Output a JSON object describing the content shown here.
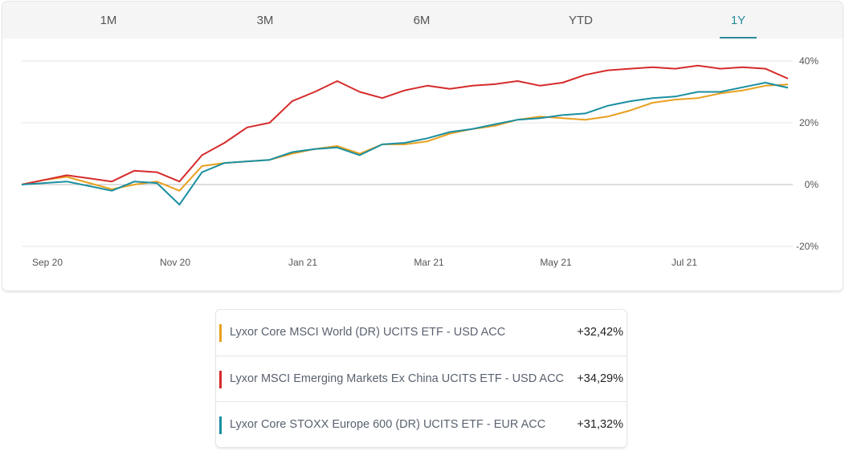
{
  "tabs": [
    {
      "label": "1M",
      "active": false
    },
    {
      "label": "3M",
      "active": false
    },
    {
      "label": "6M",
      "active": false
    },
    {
      "label": "YTD",
      "active": false
    },
    {
      "label": "1Y",
      "active": true
    }
  ],
  "colors": {
    "accent": "#2a8a99",
    "world": "#e8a020",
    "em": "#d62b2b",
    "europe": "#1a8fa0"
  },
  "chart_data": {
    "type": "line",
    "xlabel": "",
    "ylabel": "",
    "x_ticks": [
      "Sep 20",
      "Nov 20",
      "Jan 21",
      "Mar 21",
      "May 21",
      "Jul 21"
    ],
    "y_ticks": [
      "40%",
      "20%",
      "0%",
      "-20%"
    ],
    "ylim": [
      -20,
      40
    ],
    "grid": true,
    "y_axis_position": "right",
    "x": [
      "Sep 20",
      "Sep 20",
      "Oct 20",
      "Oct 20",
      "Oct 20",
      "Nov 20",
      "Nov 20",
      "Nov 20",
      "Dec 20",
      "Dec 20",
      "Dec 20",
      "Jan 21",
      "Jan 21",
      "Jan 21",
      "Feb 21",
      "Feb 21",
      "Feb 21",
      "Mar 21",
      "Mar 21",
      "Mar 21",
      "Apr 21",
      "Apr 21",
      "Apr 21",
      "May 21",
      "May 21",
      "May 21",
      "Jun 21",
      "Jun 21",
      "Jun 21",
      "Jul 21",
      "Jul 21",
      "Jul 21",
      "Aug 21",
      "Aug 21",
      "Aug 21"
    ],
    "series": [
      {
        "name": "Lyxor Core MSCI World (DR) UCITS ETF - USD ACC",
        "color": "#e8a020",
        "values": [
          0.0,
          1.5,
          2.5,
          0.5,
          -1.5,
          0.0,
          1.0,
          -2.0,
          6.0,
          7.0,
          7.5,
          8.0,
          10.0,
          11.5,
          12.5,
          10.0,
          13.0,
          13.0,
          14.0,
          16.5,
          18.0,
          19.0,
          21.0,
          22.0,
          21.5,
          21.0,
          22.0,
          24.0,
          26.5,
          27.5,
          28.0,
          29.5,
          30.5,
          32.0,
          32.42
        ]
      },
      {
        "name": "Lyxor MSCI Emerging Markets Ex China UCITS ETF - USD ACC",
        "color": "#d62b2b",
        "values": [
          0.0,
          1.5,
          3.0,
          2.0,
          1.0,
          4.5,
          4.0,
          1.0,
          9.5,
          13.5,
          18.5,
          20.0,
          27.0,
          30.0,
          33.5,
          30.0,
          28.0,
          30.5,
          32.0,
          31.0,
          32.0,
          32.5,
          33.5,
          32.0,
          33.0,
          35.5,
          37.0,
          37.5,
          38.0,
          37.5,
          38.5,
          37.5,
          38.0,
          37.5,
          34.29
        ]
      },
      {
        "name": "Lyxor Core STOXX Europe 600 (DR) UCITS ETF - EUR ACC",
        "color": "#1a8fa0",
        "values": [
          0.0,
          0.5,
          1.0,
          -0.5,
          -2.0,
          1.0,
          0.5,
          -6.5,
          4.0,
          7.0,
          7.5,
          8.0,
          10.5,
          11.5,
          12.0,
          9.5,
          13.0,
          13.5,
          15.0,
          17.0,
          18.0,
          19.5,
          21.0,
          21.5,
          22.5,
          23.0,
          25.5,
          27.0,
          28.0,
          28.5,
          30.0,
          30.0,
          31.5,
          33.0,
          31.32
        ]
      }
    ]
  },
  "legend": [
    {
      "name": "Lyxor Core MSCI World (DR) UCITS ETF - USD ACC",
      "value": "+32,42%",
      "color": "#e8a020"
    },
    {
      "name": "Lyxor MSCI Emerging Markets Ex China UCITS ETF - USD ACC",
      "value": "+34,29%",
      "color": "#d62b2b"
    },
    {
      "name": "Lyxor Core STOXX Europe 600 (DR) UCITS ETF - EUR ACC",
      "value": "+31,32%",
      "color": "#1a8fa0"
    }
  ]
}
